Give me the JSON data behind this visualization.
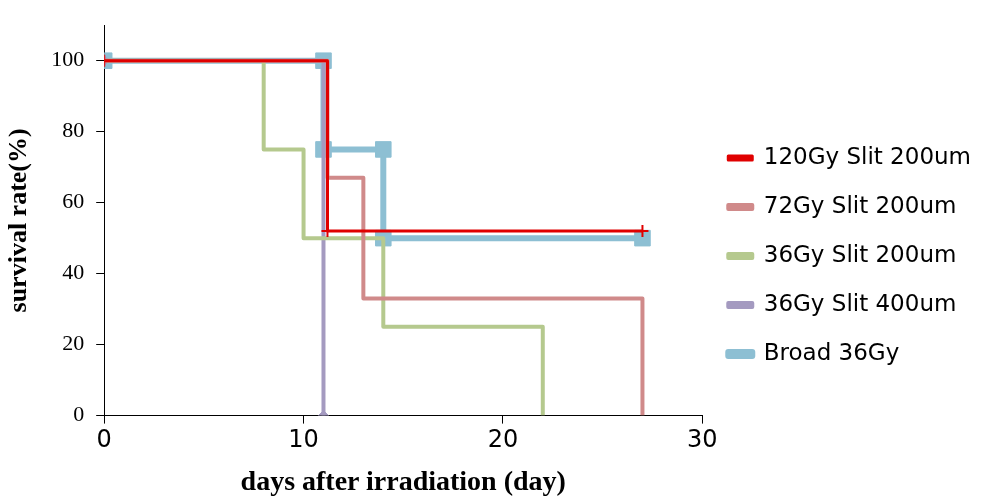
{
  "chart_data": {
    "type": "step",
    "xlabel": "days after irradiation (day)",
    "ylabel": "survival rate(%)",
    "xlim": [
      0,
      30
    ],
    "xticks": [
      0,
      10,
      20,
      30
    ],
    "ylim": [
      0,
      110
    ],
    "yticks": [
      0,
      20,
      40,
      60,
      80,
      100
    ],
    "grid": false,
    "legend": "right",
    "series": [
      {
        "name": "120Gy Slit 200um",
        "color": "#e00000",
        "marker": "cross",
        "x": [
          0,
          11.2,
          27
        ],
        "values": [
          100,
          52,
          52
        ]
      },
      {
        "name": "72Gy Slit 200um",
        "color": "#d08a8a",
        "marker": "none",
        "x": [
          0,
          11.2,
          13,
          27
        ],
        "values": [
          100,
          67,
          33,
          0
        ]
      },
      {
        "name": "36Gy Slit 200um",
        "color": "#b5c98e",
        "marker": "none",
        "x": [
          0,
          8,
          10,
          14,
          22
        ],
        "values": [
          100,
          75,
          50,
          25,
          0
        ]
      },
      {
        "name": "36Gy Slit 400um",
        "color": "#a49ac0",
        "marker": "diamond",
        "x": [
          0,
          11
        ],
        "values": [
          100,
          0
        ]
      },
      {
        "name": "Broad 36Gy",
        "color": "#8dbfd3",
        "marker": "square",
        "x": [
          0,
          11,
          11,
          14,
          14,
          27
        ],
        "values": [
          100,
          100,
          75,
          75,
          50,
          50
        ]
      }
    ]
  }
}
